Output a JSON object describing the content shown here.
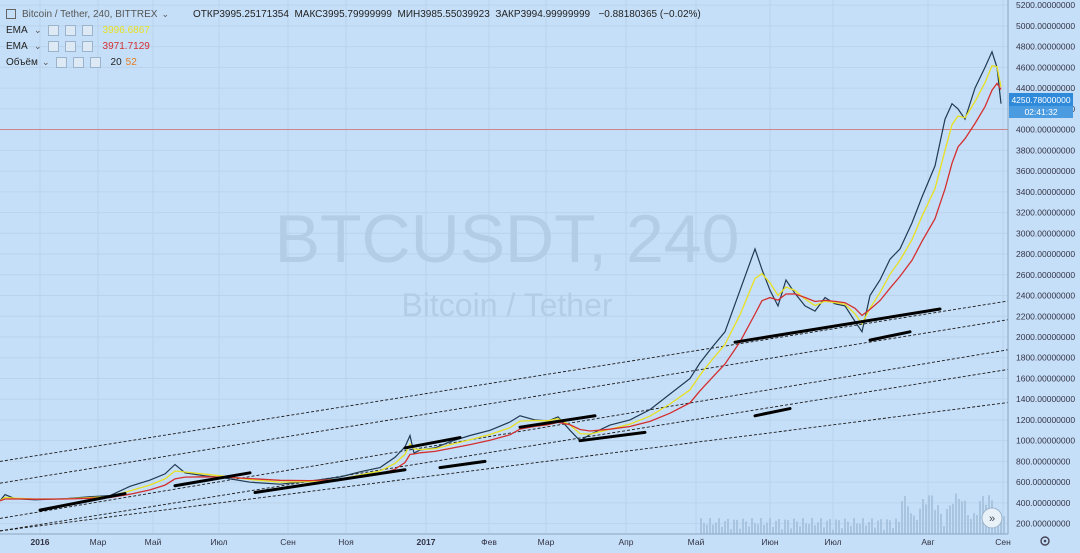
{
  "header": {
    "symbol": "Bitcoin / Tether, 240, BITTREX",
    "open_label": "ОТКР",
    "open": "3995.25171354",
    "high_label": "МАКС",
    "high": "3995.79999999",
    "low_label": "МИН",
    "low": "3985.55039923",
    "close_label": "ЗАКР",
    "close": "3994.99999999",
    "change": "−0.88180365 (−0.02%)"
  },
  "indicators": [
    {
      "name": "EMA",
      "value": "3996.6867",
      "color": "#e8e020"
    },
    {
      "name": "EMA",
      "value": "3971.7129",
      "color": "#d32f2f"
    },
    {
      "name": "Объём",
      "value": "20",
      "value2": "52",
      "color2": "#e67c22"
    }
  ],
  "watermark": {
    "symbol": "BTCUSDT, 240",
    "name": "Bitcoin / Tether"
  },
  "price_badge": {
    "price": "4250.78000000",
    "time": "02:41:32"
  },
  "colors": {
    "background": "#c6dff8",
    "ema_fast": "#e8e020",
    "ema_slow": "#d32f2f",
    "badge": "#2f8ad9"
  },
  "chart_data": {
    "type": "line",
    "ylim": [
      100,
      5250
    ],
    "yticks": [
      "200.00000000",
      "400.00000000",
      "600.00000000",
      "800.00000000",
      "1000.00000000",
      "1200.00000000",
      "1400.00000000",
      "1600.00000000",
      "1800.00000000",
      "2000.00000000",
      "2200.00000000",
      "2400.00000000",
      "2600.00000000",
      "2800.00000000",
      "3000.00000000",
      "3200.00000000",
      "3400.00000000",
      "3600.00000000",
      "3800.00000000",
      "4000.00000000",
      "4200.00000000",
      "4400.00000000",
      "4600.00000000",
      "4800.00000000",
      "5000.00000000",
      "5200.00000000"
    ],
    "xticks": [
      "2016",
      "Мар",
      "Май",
      "Июл",
      "Сен",
      "Ноя",
      "2017",
      "Фев",
      "Мар",
      "Апр",
      "Май",
      "Июн",
      "Июл",
      "Авг",
      "Сен"
    ],
    "series": [
      {
        "values": [
          [
            0,
            420
          ],
          [
            5,
            480
          ],
          [
            15,
            440
          ],
          [
            35,
            430
          ],
          [
            65,
            440
          ],
          [
            90,
            460
          ],
          [
            110,
            470
          ],
          [
            130,
            560
          ],
          [
            150,
            620
          ],
          [
            165,
            680
          ],
          [
            175,
            770
          ],
          [
            185,
            690
          ],
          [
            205,
            660
          ],
          [
            225,
            640
          ],
          [
            250,
            600
          ],
          [
            280,
            580
          ],
          [
            310,
            610
          ],
          [
            340,
            650
          ],
          [
            360,
            700
          ],
          [
            380,
            740
          ],
          [
            395,
            840
          ],
          [
            405,
            940
          ],
          [
            410,
            1050
          ],
          [
            414,
            880
          ],
          [
            420,
            910
          ],
          [
            435,
            930
          ],
          [
            450,
            990
          ],
          [
            470,
            1050
          ],
          [
            490,
            1100
          ],
          [
            510,
            1180
          ],
          [
            520,
            1240
          ],
          [
            535,
            1200
          ],
          [
            548,
            1190
          ],
          [
            558,
            1230
          ],
          [
            570,
            1100
          ],
          [
            580,
            1000
          ],
          [
            590,
            1060
          ],
          [
            610,
            1150
          ],
          [
            630,
            1200
          ],
          [
            650,
            1300
          ],
          [
            670,
            1450
          ],
          [
            690,
            1600
          ],
          [
            700,
            1750
          ],
          [
            712,
            1900
          ],
          [
            725,
            2050
          ],
          [
            740,
            2450
          ],
          [
            755,
            2850
          ],
          [
            762,
            2650
          ],
          [
            770,
            2450
          ],
          [
            778,
            2300
          ],
          [
            786,
            2550
          ],
          [
            795,
            2420
          ],
          [
            805,
            2300
          ],
          [
            815,
            2250
          ],
          [
            825,
            2380
          ],
          [
            835,
            2320
          ],
          [
            845,
            2300
          ],
          [
            855,
            2150
          ],
          [
            862,
            2050
          ],
          [
            870,
            2400
          ],
          [
            880,
            2550
          ],
          [
            890,
            2750
          ],
          [
            900,
            2850
          ],
          [
            912,
            3100
          ],
          [
            922,
            3350
          ],
          [
            935,
            3650
          ],
          [
            945,
            4100
          ],
          [
            952,
            4250
          ],
          [
            958,
            4200
          ],
          [
            965,
            4100
          ],
          [
            975,
            4400
          ],
          [
            985,
            4600
          ],
          [
            992,
            4750
          ],
          [
            997,
            4600
          ],
          [
            1001,
            4250
          ]
        ]
      }
    ],
    "trendlines": [
      {
        "x1": 40,
        "y1": 330,
        "x2": 125,
        "y2": 490
      },
      {
        "x1": 175,
        "y1": 565,
        "x2": 250,
        "y2": 690
      },
      {
        "x1": 255,
        "y1": 500,
        "x2": 405,
        "y2": 720
      },
      {
        "x1": 405,
        "y1": 930,
        "x2": 460,
        "y2": 1030
      },
      {
        "x1": 440,
        "y1": 740,
        "x2": 485,
        "y2": 800
      },
      {
        "x1": 520,
        "y1": 1130,
        "x2": 595,
        "y2": 1240
      },
      {
        "x1": 580,
        "y1": 1000,
        "x2": 645,
        "y2": 1080
      },
      {
        "x1": 735,
        "y1": 1950,
        "x2": 940,
        "y2": 2270
      },
      {
        "x1": 755,
        "y1": 1240,
        "x2": 790,
        "y2": 1310
      },
      {
        "x1": 870,
        "y1": 1970,
        "x2": 910,
        "y2": 2050
      }
    ],
    "channels": [
      {
        "x1": 0,
        "y1": 800,
        "x2": 1010,
        "y2": 2350
      },
      {
        "x1": 0,
        "y1": 590,
        "x2": 1010,
        "y2": 2170
      },
      {
        "x1": 0,
        "y1": 250,
        "x2": 1010,
        "y2": 1880
      },
      {
        "x1": 0,
        "y1": 130,
        "x2": 1010,
        "y2": 1690
      },
      {
        "x1": 0,
        "y1": 130,
        "x2": 1010,
        "y2": 1370
      }
    ],
    "horizontal_line": 4000
  }
}
